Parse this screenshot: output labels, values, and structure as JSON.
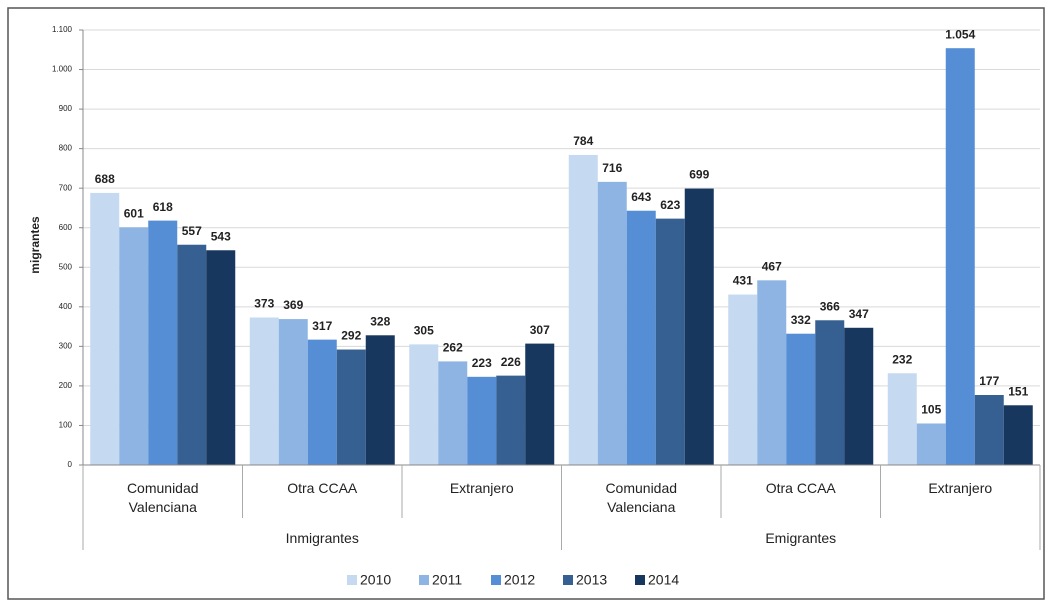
{
  "chart_data": {
    "type": "bar",
    "y_label": "migrantes",
    "categories": [
      "Comunidad Valenciana",
      "Otra CCAA",
      "Extranjero",
      "Comunidad Valenciana",
      "Otra CCAA",
      "Extranjero"
    ],
    "groups": [
      "Inmigrantes",
      "Emigrantes"
    ],
    "series": [
      {
        "name": "2010",
        "color": "#c5d9f1",
        "values": [
          688,
          373,
          305,
          784,
          431,
          232
        ]
      },
      {
        "name": "2011",
        "color": "#8db4e2",
        "values": [
          601,
          369,
          262,
          716,
          467,
          105
        ]
      },
      {
        "name": "2012",
        "color": "#558ed5",
        "values": [
          618,
          317,
          223,
          643,
          332,
          1054
        ],
        "value_labels": [
          "618",
          "317",
          "223",
          "643",
          "332",
          "1.054"
        ]
      },
      {
        "name": "2013",
        "color": "#366092",
        "values": [
          557,
          292,
          226,
          623,
          366,
          177
        ]
      },
      {
        "name": "2014",
        "color": "#17375e",
        "values": [
          543,
          328,
          307,
          699,
          347,
          151
        ]
      }
    ],
    "ylim": [
      0,
      1100
    ],
    "yticks": [
      0,
      100,
      200,
      300,
      400,
      500,
      600,
      700,
      800,
      900,
      {
        "value": 1000,
        "label": "1.000"
      },
      {
        "value": 1100,
        "label": "1.100"
      }
    ],
    "grid": true,
    "legend": "bottom"
  }
}
